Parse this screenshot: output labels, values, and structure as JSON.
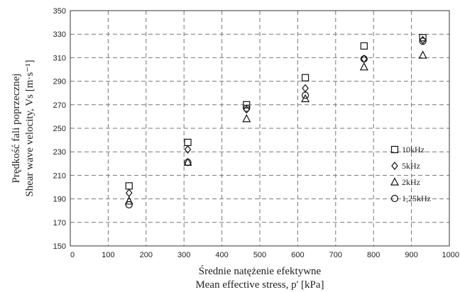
{
  "chart_data": {
    "type": "scatter",
    "xlabel_line1": "Średnie natężenie efektywne",
    "xlabel_line2": "Mean effective stress, p' [kPa]",
    "ylabel_line1": "Prędkość fali poprzecznej",
    "ylabel_line2": "Shear wave velocity, Vs [m·s⁻¹]",
    "xlim": [
      0,
      1000
    ],
    "ylim": [
      150,
      350
    ],
    "x_ticks": [
      0,
      100,
      200,
      300,
      400,
      500,
      600,
      700,
      800,
      900,
      1000
    ],
    "y_ticks": [
      150,
      170,
      190,
      210,
      230,
      250,
      270,
      290,
      310,
      330,
      350
    ],
    "grid": true,
    "legend_position": "right",
    "series": [
      {
        "name": "10kHz",
        "marker": "square",
        "points": [
          [
            155,
            201
          ],
          [
            310,
            238
          ],
          [
            465,
            270
          ],
          [
            620,
            293
          ],
          [
            775,
            320
          ],
          [
            930,
            327
          ]
        ]
      },
      {
        "name": "5kHz",
        "marker": "diamond",
        "points": [
          [
            155,
            195
          ],
          [
            310,
            232
          ],
          [
            465,
            266
          ],
          [
            620,
            284
          ],
          [
            775,
            309
          ],
          [
            930,
            325
          ]
        ]
      },
      {
        "name": "2kHz",
        "marker": "triangle",
        "points": [
          [
            155,
            188
          ],
          [
            310,
            221
          ],
          [
            465,
            258
          ],
          [
            620,
            275
          ],
          [
            775,
            302
          ],
          [
            930,
            312
          ]
        ]
      },
      {
        "name": "1,25kHz",
        "marker": "circle",
        "points": [
          [
            155,
            185
          ],
          [
            310,
            221
          ],
          [
            465,
            267
          ],
          [
            620,
            278
          ],
          [
            775,
            309
          ],
          [
            930,
            324
          ]
        ]
      }
    ]
  }
}
